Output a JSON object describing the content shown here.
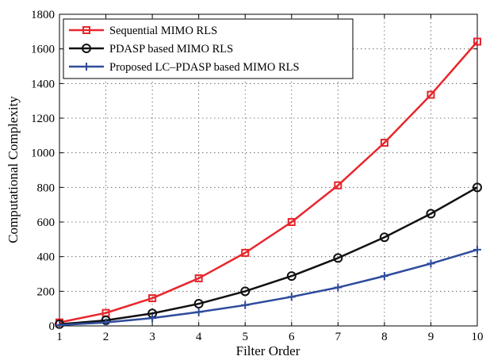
{
  "chart_data": {
    "type": "line",
    "xlabel": "Filter Order",
    "ylabel": "Computational Complexity",
    "xlim": [
      1,
      10
    ],
    "ylim": [
      0,
      1800
    ],
    "xticks": [
      1,
      2,
      3,
      4,
      5,
      6,
      7,
      8,
      9,
      10
    ],
    "yticks": [
      0,
      200,
      400,
      600,
      800,
      1000,
      1200,
      1400,
      1600,
      1800
    ],
    "grid": true,
    "legend_position": "top-left",
    "x": [
      1,
      2,
      3,
      4,
      5,
      6,
      7,
      8,
      9,
      10
    ],
    "series": [
      {
        "name": "Sequential MIMO RLS",
        "color": "#e8262c",
        "marker": "square",
        "values": [
          20,
          75,
          160,
          275,
          422,
          600,
          812,
          1058,
          1335,
          1642
        ]
      },
      {
        "name": "PDASP based MIMO RLS",
        "color": "#111111",
        "marker": "circle",
        "values": [
          10,
          32,
          72,
          128,
          200,
          288,
          392,
          512,
          648,
          800
        ]
      },
      {
        "name": "Proposed LC–PDASP based MIMO RLS",
        "color": "#2e4b9c",
        "marker": "plus",
        "values": [
          5,
          20,
          45,
          80,
          120,
          168,
          222,
          288,
          360,
          440
        ]
      }
    ]
  }
}
